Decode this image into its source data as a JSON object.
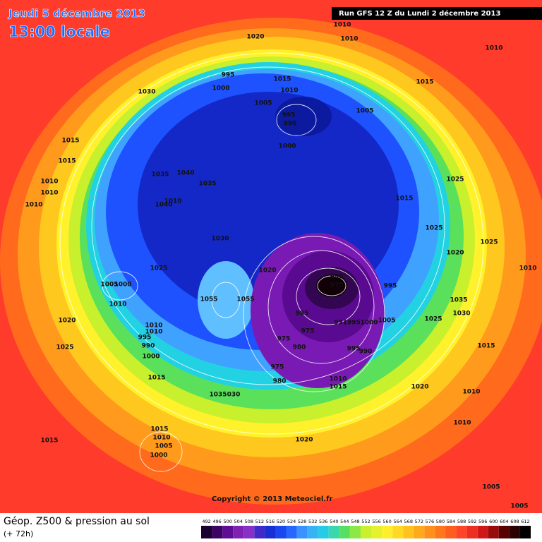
{
  "header": {
    "date": "Jeudi 5 décembre 2013",
    "time": "13:00 locale",
    "run": "Run GFS 12 Z du Lundi 2 décembre 2013"
  },
  "map": {
    "copyright": "Copyright © 2013 Meteociel.fr",
    "pressure_labels": [
      1010,
      1010,
      1010,
      1020,
      1030,
      995,
      1000,
      1015,
      1010,
      1005,
      995,
      990,
      1005,
      1015,
      1000,
      1015,
      1015,
      1035,
      1040,
      1035,
      1010,
      1010,
      1010,
      1040,
      1010,
      1025,
      1015,
      1025,
      1025,
      1030,
      1020,
      1010,
      1020,
      1025,
      1005,
      1000,
      980,
      975,
      995,
      1055,
      1055,
      1035,
      1030,
      1010,
      985,
      1025,
      "991995",
      1000,
      1005,
      1020,
      1010,
      1010,
      995,
      975,
      975,
      980,
      995,
      990,
      1015,
      990,
      1025,
      1000,
      975,
      1015,
      1010,
      980,
      1015,
      1020,
      1010,
      1035,
      "030",
      1015,
      1010,
      1005,
      1000,
      1015,
      1020,
      1010,
      1005,
      1005
    ]
  },
  "legend": {
    "title": "Géop. Z500 & pression au sol",
    "lead_time": "(+ 72h)",
    "ticks": [
      492,
      496,
      500,
      504,
      508,
      512,
      516,
      520,
      524,
      528,
      532,
      536,
      540,
      544,
      548,
      552,
      556,
      560,
      564,
      568,
      572,
      576,
      580,
      584,
      588,
      592,
      596,
      600,
      604,
      608,
      612
    ]
  }
}
